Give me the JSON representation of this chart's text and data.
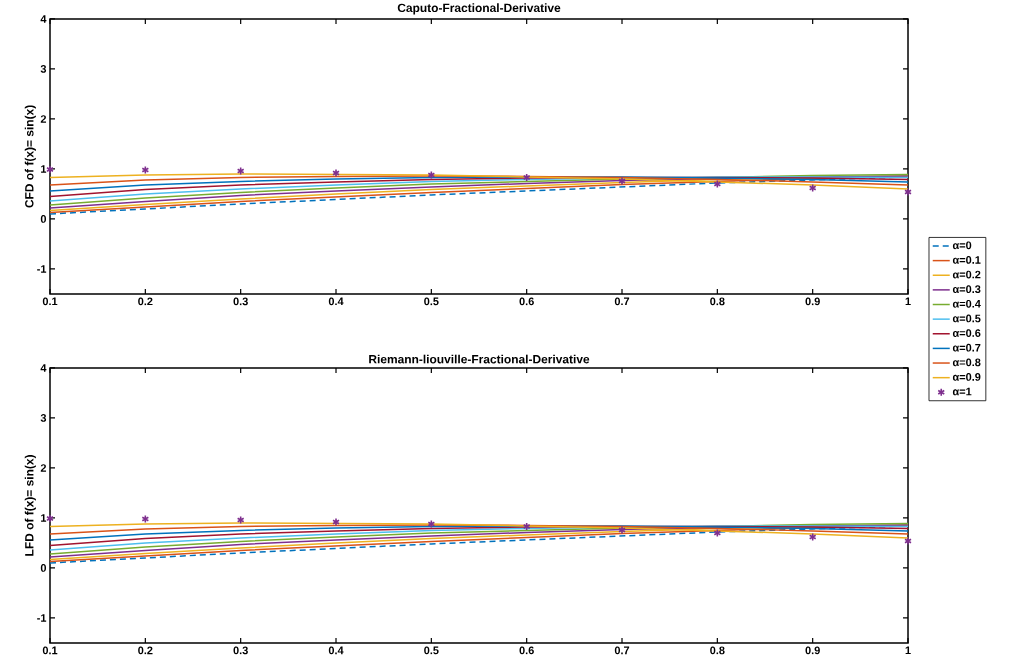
{
  "chart_data": [
    {
      "type": "line",
      "title": "Caputo-Fractional-Derivative",
      "ylabel": "CFD of f(x)= sin(x)",
      "x": [
        0.1,
        0.2,
        0.3,
        0.4,
        0.5,
        0.6,
        0.7,
        0.8,
        0.9,
        1
      ],
      "xlim": [
        0.1,
        1
      ],
      "xticks": [
        0.1,
        0.2,
        0.3,
        0.4,
        0.5,
        0.6,
        0.7,
        0.8,
        0.9,
        1
      ],
      "ylim": [
        -1.5,
        4
      ],
      "yticks": [
        -1,
        0,
        1,
        2,
        3,
        4
      ],
      "legend": "right",
      "series": [
        {
          "name": "α=0",
          "color": "#0072bd",
          "line_style": "dashed",
          "values": [
            0.1,
            0.2,
            0.3,
            0.39,
            0.48,
            0.56,
            0.64,
            0.72,
            0.78,
            0.84
          ]
        },
        {
          "name": "α=0.1",
          "color": "#d95319",
          "values": [
            0.13,
            0.24,
            0.35,
            0.44,
            0.53,
            0.61,
            0.69,
            0.75,
            0.81,
            0.85
          ]
        },
        {
          "name": "α=0.2",
          "color": "#edb120",
          "values": [
            0.17,
            0.29,
            0.4,
            0.5,
            0.59,
            0.66,
            0.73,
            0.79,
            0.83,
            0.86
          ]
        },
        {
          "name": "α=0.3",
          "color": "#7e2f8e",
          "values": [
            0.22,
            0.35,
            0.47,
            0.56,
            0.64,
            0.71,
            0.77,
            0.81,
            0.84,
            0.86
          ]
        },
        {
          "name": "α=0.4",
          "color": "#77ac30",
          "values": [
            0.28,
            0.42,
            0.53,
            0.62,
            0.7,
            0.75,
            0.8,
            0.83,
            0.87,
            0.89
          ]
        },
        {
          "name": "α=0.5",
          "color": "#4dbeee",
          "values": [
            0.36,
            0.5,
            0.6,
            0.68,
            0.75,
            0.79,
            0.82,
            0.84,
            0.84,
            0.83
          ]
        },
        {
          "name": "α=0.6",
          "color": "#a2142f",
          "values": [
            0.45,
            0.59,
            0.68,
            0.74,
            0.79,
            0.82,
            0.83,
            0.83,
            0.82,
            0.79
          ]
        },
        {
          "name": "α=0.7",
          "color": "#0072bd",
          "values": [
            0.56,
            0.68,
            0.75,
            0.8,
            0.83,
            0.84,
            0.84,
            0.82,
            0.79,
            0.74
          ]
        },
        {
          "name": "α=0.8",
          "color": "#d95319",
          "values": [
            0.68,
            0.78,
            0.83,
            0.85,
            0.86,
            0.85,
            0.83,
            0.79,
            0.74,
            0.68
          ]
        },
        {
          "name": "α=0.9",
          "color": "#edb120",
          "values": [
            0.83,
            0.88,
            0.9,
            0.89,
            0.88,
            0.84,
            0.8,
            0.74,
            0.68,
            0.6
          ]
        },
        {
          "name": "α=1",
          "color": "#7e2f8e",
          "type": "scatter",
          "marker": "cross",
          "values": [
            0.99,
            0.98,
            0.96,
            0.92,
            0.88,
            0.83,
            0.76,
            0.7,
            0.62,
            0.54
          ]
        }
      ]
    },
    {
      "type": "line",
      "title": "Riemann-liouville-Fractional-Derivative",
      "ylabel": "LFD of f(x)= sin(x)",
      "x": [
        0.1,
        0.2,
        0.3,
        0.4,
        0.5,
        0.6,
        0.7,
        0.8,
        0.9,
        1
      ],
      "xlim": [
        0.1,
        1
      ],
      "xticks": [
        0.1,
        0.2,
        0.3,
        0.4,
        0.5,
        0.6,
        0.7,
        0.8,
        0.9,
        1
      ],
      "ylim": [
        -1.5,
        4
      ],
      "yticks": [
        -1,
        0,
        1,
        2,
        3,
        4
      ],
      "series": [
        {
          "color": "#0072bd",
          "line_style": "dashed",
          "values": [
            0.1,
            0.2,
            0.3,
            0.39,
            0.48,
            0.56,
            0.64,
            0.72,
            0.78,
            0.84
          ]
        },
        {
          "color": "#d95319",
          "values": [
            0.13,
            0.24,
            0.35,
            0.44,
            0.53,
            0.61,
            0.69,
            0.75,
            0.81,
            0.85
          ]
        },
        {
          "color": "#edb120",
          "values": [
            0.17,
            0.29,
            0.4,
            0.5,
            0.59,
            0.66,
            0.73,
            0.79,
            0.83,
            0.86
          ]
        },
        {
          "color": "#7e2f8e",
          "values": [
            0.22,
            0.35,
            0.47,
            0.56,
            0.64,
            0.71,
            0.77,
            0.81,
            0.84,
            0.86
          ]
        },
        {
          "color": "#77ac30",
          "values": [
            0.28,
            0.42,
            0.53,
            0.62,
            0.7,
            0.75,
            0.8,
            0.83,
            0.87,
            0.89
          ]
        },
        {
          "color": "#4dbeee",
          "values": [
            0.36,
            0.5,
            0.6,
            0.68,
            0.75,
            0.79,
            0.82,
            0.84,
            0.84,
            0.83
          ]
        },
        {
          "color": "#a2142f",
          "values": [
            0.45,
            0.59,
            0.68,
            0.74,
            0.79,
            0.82,
            0.83,
            0.83,
            0.82,
            0.79
          ]
        },
        {
          "color": "#0072bd",
          "values": [
            0.56,
            0.68,
            0.75,
            0.8,
            0.83,
            0.84,
            0.84,
            0.82,
            0.79,
            0.74
          ]
        },
        {
          "color": "#d95319",
          "values": [
            0.68,
            0.78,
            0.83,
            0.85,
            0.86,
            0.85,
            0.83,
            0.79,
            0.74,
            0.68
          ]
        },
        {
          "color": "#edb120",
          "values": [
            0.83,
            0.88,
            0.9,
            0.89,
            0.88,
            0.84,
            0.8,
            0.74,
            0.68,
            0.6
          ]
        },
        {
          "color": "#7e2f8e",
          "type": "scatter",
          "marker": "cross",
          "values": [
            0.99,
            0.98,
            0.96,
            0.92,
            0.88,
            0.83,
            0.76,
            0.7,
            0.62,
            0.54
          ]
        }
      ]
    }
  ]
}
